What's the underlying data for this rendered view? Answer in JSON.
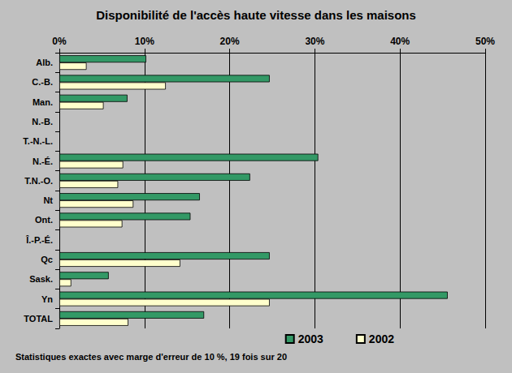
{
  "chart_data": {
    "type": "bar",
    "orientation": "horizontal",
    "title": "Disponibilité de l'accès haute vitesse dans les maisons",
    "annotations": [
      "Statistiques exactes avec marge d'erreur de 10 %, 19 fois sur 20"
    ],
    "categories": [
      "Alb.",
      "C.-B.",
      "Man.",
      "N.-B.",
      "T.-N.-L.",
      "N.-É.",
      "T.N.-O.",
      "Nt",
      "Ont.",
      "Î.-P.-É.",
      "Qc",
      "Sask.",
      "Yn",
      "TOTAL"
    ],
    "series": [
      {
        "name": "2003",
        "color": "#339966",
        "values": [
          10.2,
          24.7,
          8.0,
          null,
          null,
          30.4,
          22.4,
          16.5,
          15.4,
          null,
          24.7,
          5.8,
          45.6,
          17.0
        ]
      },
      {
        "name": "2002",
        "color": "#ffffcc",
        "values": [
          3.2,
          12.5,
          5.2,
          null,
          null,
          7.5,
          6.9,
          8.7,
          7.4,
          null,
          14.2,
          1.4,
          24.7,
          8.1
        ]
      }
    ],
    "xlim": [
      0,
      50
    ],
    "xticks": [
      {
        "value": 0,
        "label": "0%"
      },
      {
        "value": 10,
        "label": "10%"
      },
      {
        "value": 20,
        "label": "20%"
      },
      {
        "value": 30,
        "label": "30%"
      },
      {
        "value": 40,
        "label": "40%"
      },
      {
        "value": 50,
        "label": "50%"
      }
    ],
    "grid": true,
    "legend": "lower-right"
  }
}
